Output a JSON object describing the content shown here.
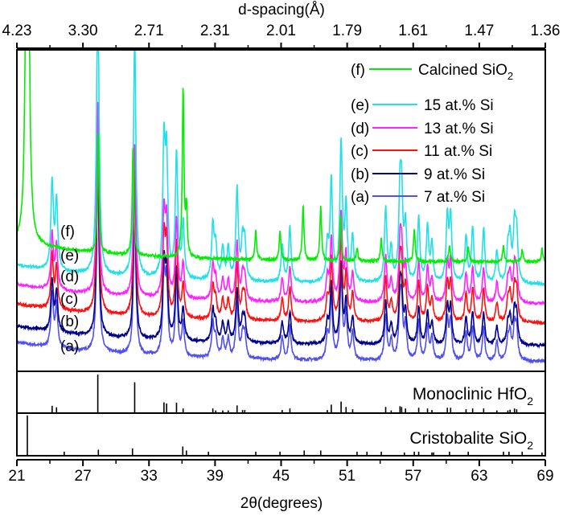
{
  "chart_data": {
    "type": "line",
    "xlabel": "2θ(degrees)",
    "x_top_label": "d-spacing(Å)",
    "xlim": [
      21,
      69
    ],
    "x_ticks": [
      21,
      27,
      33,
      39,
      45,
      51,
      57,
      63,
      69
    ],
    "x_top_ticks": [
      "4.23",
      "3.30",
      "2.71",
      "2.31",
      "2.01",
      "1.79",
      "1.61",
      "1.47",
      "1.36"
    ],
    "ylabel": "",
    "legend_position": "top-right",
    "series": [
      {
        "id": "f",
        "tag": "(f)",
        "name": "Calcined SiO",
        "sub": "2",
        "color": "#00ee00",
        "offset": 34,
        "peaks": [
          [
            21.95,
            400
          ],
          [
            28.4,
            38
          ],
          [
            31.55,
            34
          ],
          [
            36.1,
            52
          ],
          [
            36.4,
            14
          ],
          [
            42.7,
            9
          ],
          [
            44.9,
            9
          ],
          [
            47.0,
            17
          ],
          [
            48.6,
            17
          ],
          [
            50.4,
            14
          ],
          [
            51.9,
            4
          ],
          [
            54.1,
            7
          ],
          [
            57.1,
            10
          ],
          [
            60.3,
            5
          ],
          [
            62.0,
            5
          ],
          [
            65.2,
            5
          ],
          [
            66.9,
            4
          ],
          [
            68.7,
            4
          ]
        ]
      },
      {
        "id": "e",
        "tag": "(e)",
        "name": "15 at.% Si",
        "color": "#22e0e8",
        "offset": 27,
        "scale": 95
      },
      {
        "id": "d",
        "tag": "(d)",
        "name": "13 at.% Si",
        "color": "#ff22ff",
        "offset": 21,
        "scale": 60
      },
      {
        "id": "c",
        "tag": "(c)",
        "name": "11 at.% Si",
        "color": "#ff1010",
        "offset": 15,
        "scale": 58
      },
      {
        "id": "b",
        "tag": "(b)",
        "name": "9 at.% Si",
        "color": "#00008b",
        "offset": 8,
        "scale": 55
      },
      {
        "id": "a",
        "tag": "(a)",
        "name": "7 at.% Si",
        "color": "#5050f0",
        "offset": 3,
        "scale": 58
      }
    ],
    "references": [
      {
        "name": "Monoclinic HfO",
        "sub": "2",
        "lines": [
          [
            24.2,
            0.19
          ],
          [
            24.6,
            0.15
          ],
          [
            28.35,
            1.0
          ],
          [
            31.7,
            0.8
          ],
          [
            34.36,
            0.28
          ],
          [
            34.6,
            0.25
          ],
          [
            35.5,
            0.27
          ],
          [
            36.1,
            0.12
          ],
          [
            38.8,
            0.12
          ],
          [
            39.06,
            0.07
          ],
          [
            39.7,
            0.07
          ],
          [
            40.2,
            0.07
          ],
          [
            41.0,
            0.2
          ],
          [
            41.5,
            0.08
          ],
          [
            41.7,
            0.08
          ],
          [
            45.1,
            0.08
          ],
          [
            45.8,
            0.12
          ],
          [
            49.2,
            0.08
          ],
          [
            49.56,
            0.22
          ],
          [
            50.45,
            0.3
          ],
          [
            50.9,
            0.16
          ],
          [
            51.5,
            0.1
          ],
          [
            54.5,
            0.16
          ],
          [
            55.0,
            0.07
          ],
          [
            55.8,
            0.18
          ],
          [
            55.95,
            0.16
          ],
          [
            56.3,
            0.12
          ],
          [
            57.5,
            0.14
          ],
          [
            58.3,
            0.12
          ],
          [
            58.7,
            0.08
          ],
          [
            60.1,
            0.14
          ],
          [
            60.4,
            0.14
          ],
          [
            61.8,
            0.1
          ],
          [
            62.4,
            0.12
          ],
          [
            63.4,
            0.12
          ],
          [
            64.6,
            0.07
          ],
          [
            65.6,
            0.07
          ],
          [
            65.8,
            0.09
          ],
          [
            66.2,
            0.12
          ],
          [
            66.4,
            0.1
          ]
        ]
      },
      {
        "name": "Cristobalite SiO",
        "sub": "2",
        "lines": [
          [
            21.95,
            1.0
          ],
          [
            25.3,
            0.1
          ],
          [
            28.4,
            0.15
          ],
          [
            31.5,
            0.18
          ],
          [
            36.07,
            0.23
          ],
          [
            36.4,
            0.13
          ],
          [
            38.4,
            0.1
          ],
          [
            42.7,
            0.1
          ],
          [
            44.9,
            0.1
          ],
          [
            47.1,
            0.13
          ],
          [
            48.6,
            0.13
          ],
          [
            51.9,
            0.1
          ],
          [
            52.8,
            0.1
          ],
          [
            54.1,
            0.1
          ],
          [
            56.2,
            0.08
          ],
          [
            57.1,
            0.1
          ],
          [
            57.5,
            0.1
          ],
          [
            58.7,
            0.08
          ],
          [
            58.85,
            0.08
          ],
          [
            60.3,
            0.1
          ],
          [
            62.0,
            0.1
          ],
          [
            65.2,
            0.1
          ],
          [
            65.7,
            0.1
          ],
          [
            66.9,
            0.1
          ],
          [
            68.7,
            0.08
          ]
        ]
      }
    ]
  }
}
